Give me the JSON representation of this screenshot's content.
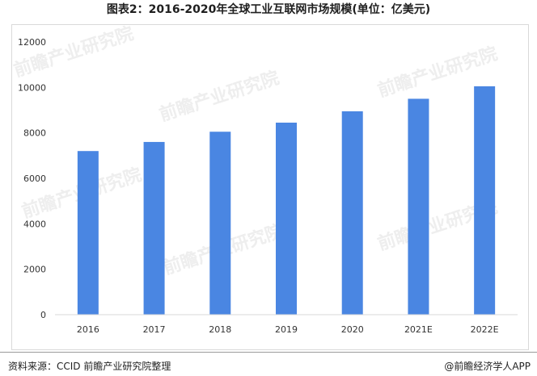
{
  "title": "图表2：2016-2020年全球工业互联网市场规模(单位：亿美元)",
  "source": "资料来源：CCID 前瞻产业研究院整理",
  "brand": "@前瞻经济学人APP",
  "watermark": "前瞻产业研究院",
  "colors": {
    "bar": "#4a86e2",
    "axis": "#d9d9d9",
    "tick_text": "#333333"
  },
  "chart_data": {
    "type": "bar",
    "categories": [
      "2016",
      "2017",
      "2018",
      "2019",
      "2020",
      "2021E",
      "2022E"
    ],
    "values": [
      7200,
      7600,
      8050,
      8450,
      8950,
      9500,
      10050
    ],
    "ylim": [
      0,
      12000
    ],
    "yticks": [
      0,
      2000,
      4000,
      6000,
      8000,
      10000,
      12000
    ],
    "grid": false,
    "legend": "none"
  }
}
